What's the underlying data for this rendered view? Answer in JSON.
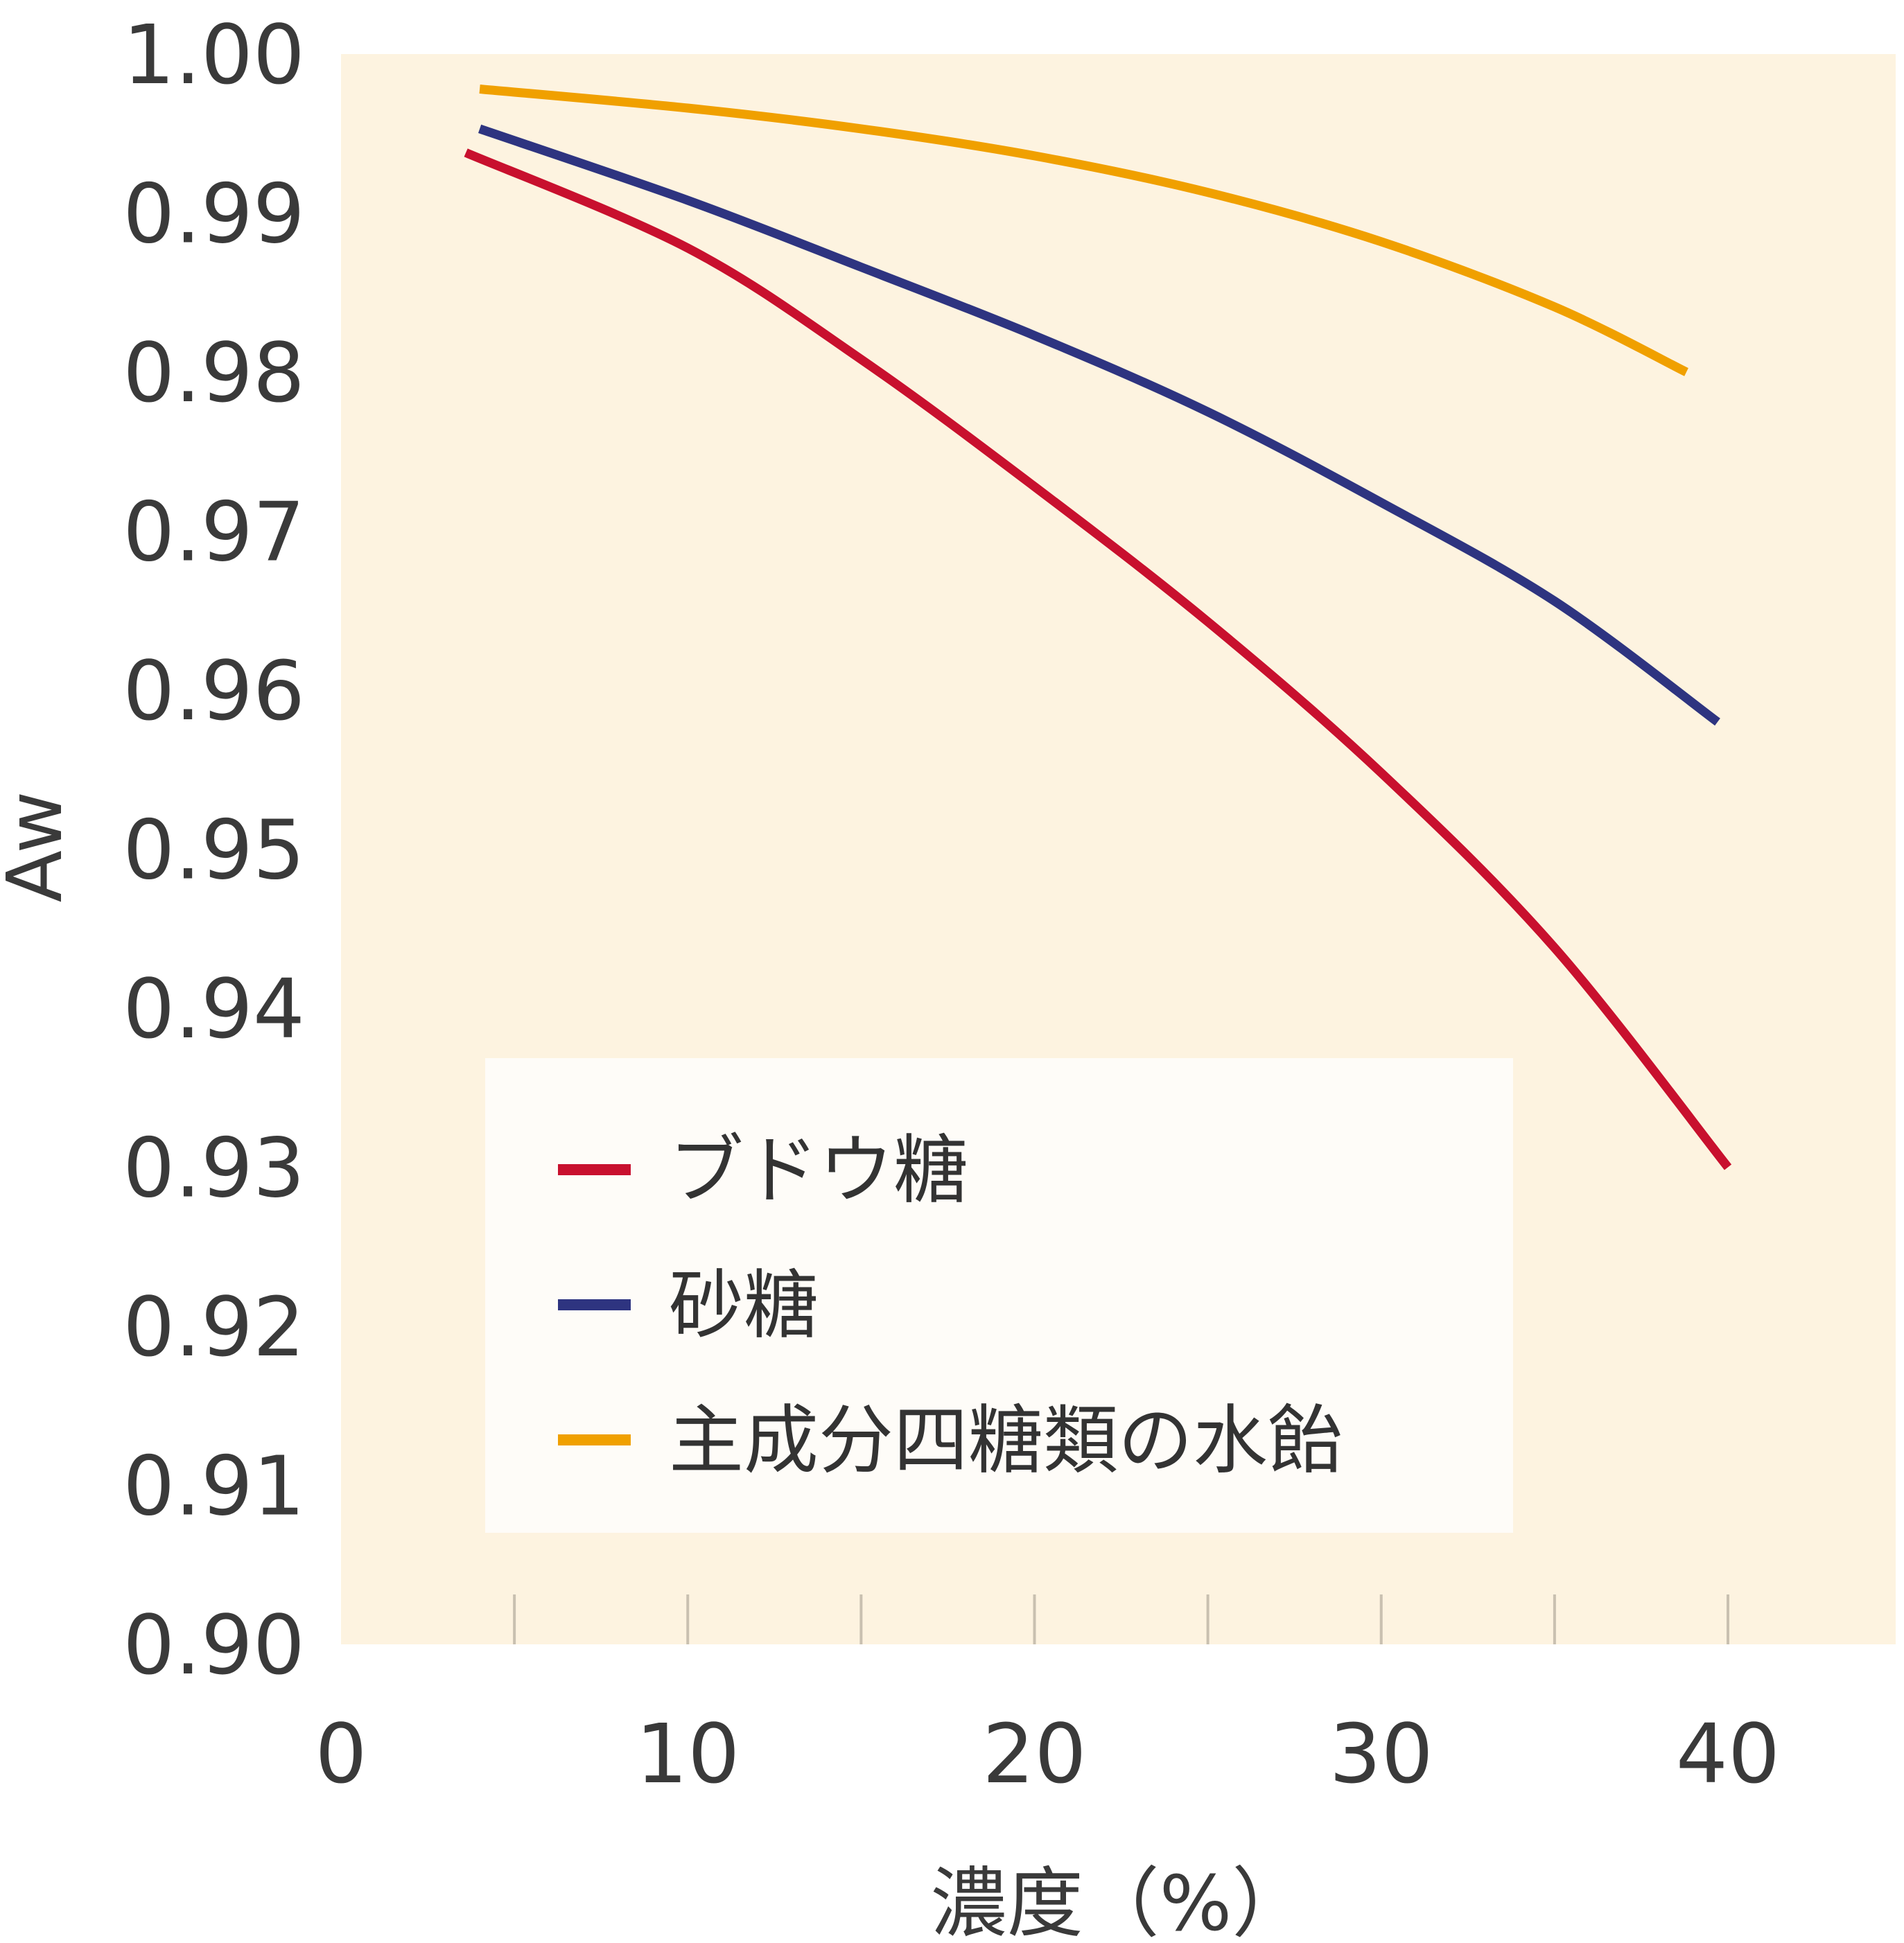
{
  "chart_data": {
    "type": "line",
    "title": "",
    "xlabel": "濃度（%）",
    "ylabel": "Aw",
    "xlim": [
      0,
      45
    ],
    "ylim": [
      0.9,
      1.0
    ],
    "x_ticks": [
      0,
      10,
      20,
      30,
      40
    ],
    "x_tick_labels": [
      "0",
      "10",
      "20",
      "30",
      "40"
    ],
    "x_minor_ticks": [
      5,
      10,
      15,
      20,
      25,
      30,
      35,
      40
    ],
    "y_ticks": [
      0.9,
      0.91,
      0.92,
      0.93,
      0.94,
      0.95,
      0.96,
      0.97,
      0.98,
      0.99,
      1.0
    ],
    "y_tick_labels": [
      "0.90",
      "0.91",
      "0.92",
      "0.93",
      "0.94",
      "0.95",
      "0.96",
      "0.97",
      "0.98",
      "0.99",
      "1.00"
    ],
    "grid": false,
    "legend_position": "bottom-left inside plot",
    "plot_background": "#fdf3e0",
    "legend_background": "#fefcf8",
    "series": [
      {
        "name": "ブドウ糖",
        "color": "#c8102e",
        "x": [
          3.6,
          10,
          15,
          20,
          25,
          30,
          35,
          40
        ],
        "y": [
          0.9938,
          0.9878,
          0.9808,
          0.9728,
          0.9643,
          0.9548,
          0.9438,
          0.93
        ]
      },
      {
        "name": "砂糖",
        "color": "#2e3480",
        "x": [
          4,
          10,
          15,
          20,
          25,
          30,
          35,
          39.7
        ],
        "y": [
          0.9953,
          0.9908,
          0.9866,
          0.9823,
          0.9775,
          0.9718,
          0.9656,
          0.958
        ]
      },
      {
        "name": "主成分四糖類の水飴",
        "color": "#f0a000",
        "x": [
          4,
          10,
          15,
          20,
          25,
          30,
          35,
          38.8
        ],
        "y": [
          0.9978,
          0.9966,
          0.9953,
          0.9936,
          0.9913,
          0.9882,
          0.9841,
          0.98
        ]
      }
    ]
  }
}
